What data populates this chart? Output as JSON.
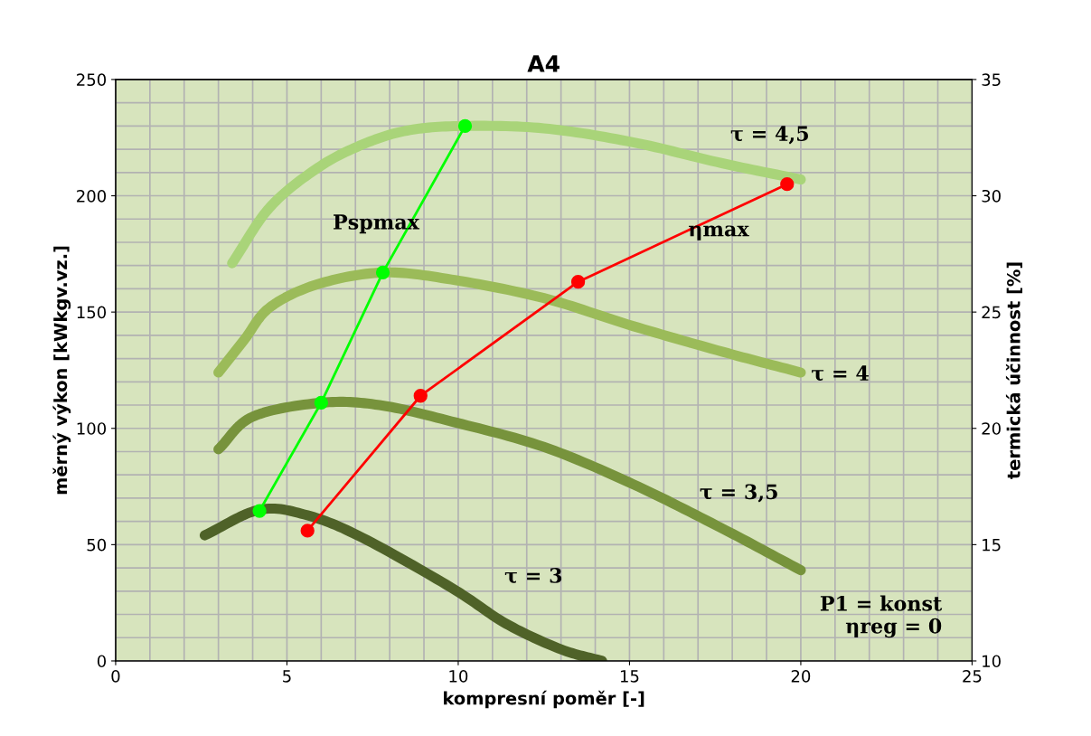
{
  "chart_data": {
    "type": "line",
    "title": "A4",
    "xlabel": "kompresní poměr [-]",
    "ylabel": "měrný výkon [kWkgv.vz.]",
    "y2label": "termická účinnost [%]",
    "xlim": [
      0,
      25
    ],
    "xticks": [
      0,
      5,
      10,
      15,
      20,
      25
    ],
    "ylim": [
      0,
      250
    ],
    "yticks": [
      0,
      50,
      100,
      150,
      200,
      250
    ],
    "y2lim": [
      10,
      35
    ],
    "y2ticks": [
      10,
      15,
      20,
      25,
      30,
      35
    ],
    "grid": true,
    "marker": "none",
    "line_style": "solid",
    "series": [
      {
        "name": "τ = 4,5",
        "color": "#a9d479",
        "x": [
          3.4,
          4.5,
          5.9,
          7.2,
          8.5,
          10.1,
          12.5,
          15.1,
          17.7,
          20
        ],
        "values": [
          171,
          195,
          212,
          222,
          228,
          230,
          229,
          223,
          214,
          207
        ]
      },
      {
        "name": "τ = 4",
        "color": "#9bbb59",
        "x": [
          3,
          3.75,
          4.5,
          5.9,
          7.8,
          9.8,
          12.5,
          15.1,
          17.7,
          20
        ],
        "values": [
          124,
          138,
          152,
          162,
          167,
          164,
          156,
          144,
          133,
          124
        ]
      },
      {
        "name": "τ = 3,5",
        "color": "#77933c",
        "x": [
          3,
          4,
          6,
          7.7,
          9.8,
          12.5,
          15.1,
          17.7,
          20
        ],
        "values": [
          91,
          105,
          111,
          110,
          103,
          92,
          76,
          57,
          39
        ]
      },
      {
        "name": "τ = 3",
        "color": "#4f6228",
        "x": [
          2.6,
          4.2,
          5.6,
          7.2,
          9.8,
          11.4,
          13,
          14.2
        ],
        "values": [
          54,
          65,
          62.6,
          53,
          31.5,
          16,
          5,
          0
        ]
      },
      {
        "name": "Pspmax",
        "color": "#00ff00",
        "marker": "circle",
        "x": [
          4.2,
          6,
          7.8,
          10.2
        ],
        "values": [
          64.5,
          111,
          167,
          230
        ]
      },
      {
        "name": "ηmax",
        "color": "#ff0000",
        "marker": "circle",
        "axis": "y2",
        "x": [
          5.6,
          8.9,
          13.5,
          19.6
        ],
        "values": [
          15.6,
          21.4,
          26.3,
          30.5
        ]
      }
    ],
    "annotations": [
      "P1 = konst\nηreg = 0"
    ]
  }
}
